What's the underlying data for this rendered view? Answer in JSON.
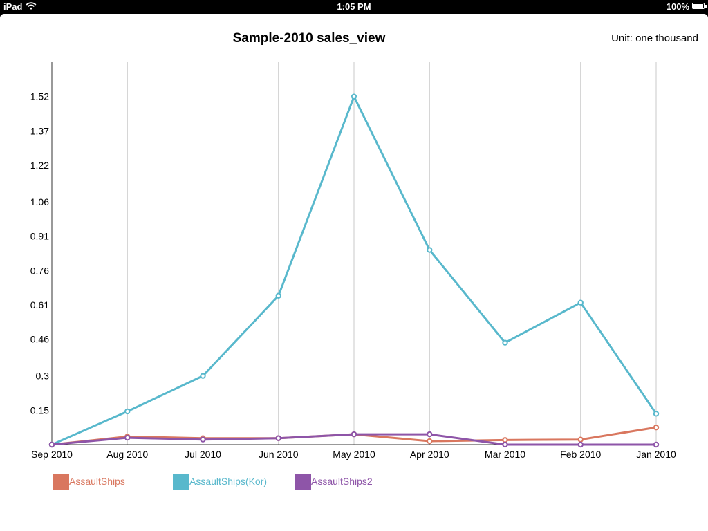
{
  "status_bar": {
    "carrier": "iPad",
    "time": "1:05 PM",
    "battery": "100%"
  },
  "header": {
    "title": "Sample-2010 sales_view",
    "unit": "Unit: one thousand"
  },
  "colors": {
    "AssaultShips": "#d9775f",
    "AssaultShips(Kor)": "#58b8cc",
    "AssaultShips2": "#8e55a8",
    "grid": "#c8c8c8",
    "axis": "#333333"
  },
  "chart_data": {
    "type": "line",
    "categories": [
      "Sep 2010",
      "Aug 2010",
      "Jul 2010",
      "Jun 2010",
      "May 2010",
      "Apr 2010",
      "Mar 2010",
      "Feb 2010",
      "Jan 2010"
    ],
    "yticks": [
      "0.15",
      "0.3",
      "0.46",
      "0.61",
      "0.76",
      "0.91",
      "1.06",
      "1.22",
      "1.37",
      "1.52"
    ],
    "ylim": [
      0,
      1.67
    ],
    "series": [
      {
        "name": "AssaultShips",
        "values": [
          0.0,
          0.035,
          0.028,
          0.028,
          0.045,
          0.015,
          0.02,
          0.022,
          0.075
        ]
      },
      {
        "name": "AssaultShips(Kor)",
        "values": [
          0.0,
          0.145,
          0.3,
          0.65,
          1.52,
          0.85,
          0.445,
          0.62,
          0.135
        ]
      },
      {
        "name": "AssaultShips2",
        "values": [
          0.0,
          0.03,
          0.022,
          0.028,
          0.045,
          0.045,
          0.0,
          0.0,
          0.0
        ]
      }
    ],
    "grid": "vertical",
    "legend_position": "bottom-left"
  }
}
